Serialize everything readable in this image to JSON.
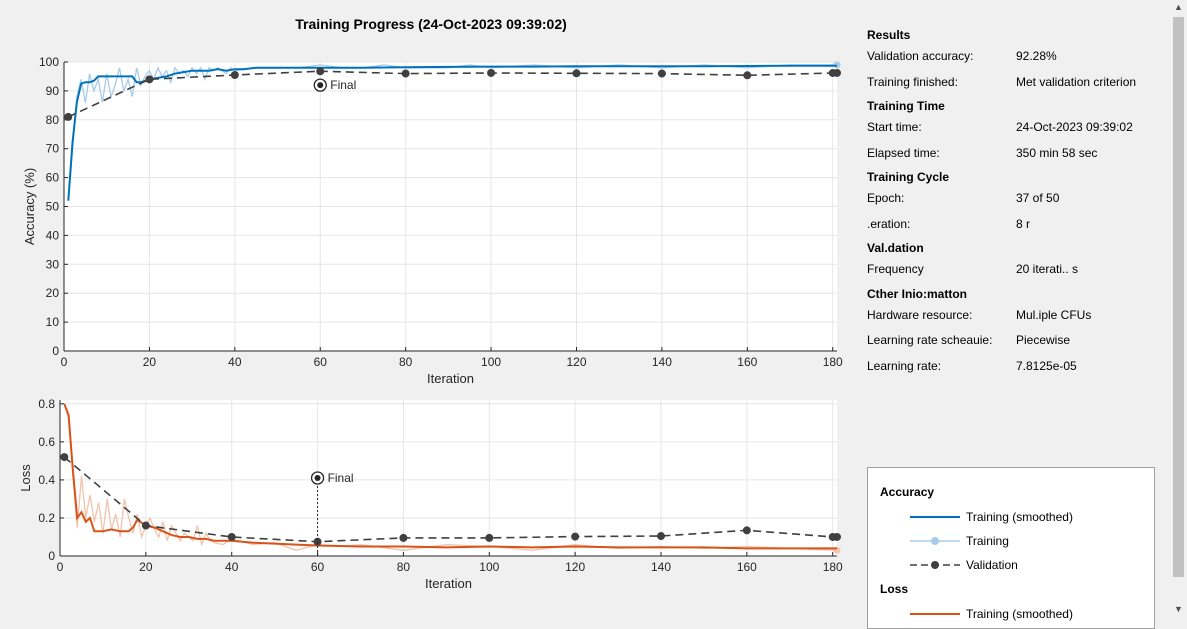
{
  "title": "Training Progress (24-Oct-2023 09:39:02)",
  "colors": {
    "acc_smooth": "#0072bd",
    "acc_train": "#a8cbe8",
    "loss_smooth": "#d95319",
    "loss_train": "#f0c4ad",
    "validation": "#404040"
  },
  "chart_data": [
    {
      "type": "line",
      "ylabel": "Accuracy (%)",
      "xlabel": "Iteration",
      "xlim": [
        0,
        181
      ],
      "ylim": [
        0,
        100
      ],
      "xticks": [
        0,
        20,
        40,
        60,
        80,
        100,
        120,
        140,
        160,
        180
      ],
      "yticks": [
        0,
        10,
        20,
        30,
        40,
        50,
        60,
        70,
        80,
        90,
        100
      ],
      "grid": true,
      "final_marker": {
        "x": 60,
        "y": 92,
        "label": "Final"
      },
      "series": [
        {
          "name": "Training (smoothed)",
          "x": [
            1,
            2,
            3,
            4,
            5,
            6,
            7,
            8,
            9,
            10,
            12,
            14,
            16,
            17,
            18,
            20,
            22,
            24,
            26,
            28,
            30,
            32,
            34,
            36,
            38,
            40,
            42,
            45,
            50,
            55,
            60,
            70,
            80,
            90,
            100,
            110,
            120,
            130,
            140,
            150,
            160,
            170,
            181
          ],
          "y": [
            52,
            72,
            86,
            92.5,
            93,
            93,
            93.5,
            95,
            95,
            95,
            95,
            95,
            95,
            93,
            93,
            94,
            94.5,
            95,
            96,
            96.5,
            97,
            97,
            97,
            97.5,
            97,
            97.5,
            97.5,
            98,
            98,
            98,
            98,
            98,
            98.2,
            98.3,
            98.4,
            98.4,
            98.5,
            98.5,
            98.5,
            98.5,
            98.6,
            98.7,
            98.7
          ]
        },
        {
          "name": "Training",
          "x": [
            1,
            2,
            3,
            4,
            5,
            6,
            7,
            8,
            9,
            10,
            11,
            12,
            13,
            14,
            15,
            16,
            17,
            18,
            19,
            20,
            21,
            22,
            23,
            24,
            25,
            26,
            27,
            28,
            29,
            30,
            31,
            32,
            33,
            34,
            35,
            36,
            37,
            38,
            39,
            40,
            45,
            50,
            55,
            60,
            65,
            70,
            75,
            80,
            85,
            90,
            95,
            100,
            110,
            120,
            130,
            140,
            150,
            160,
            170,
            181
          ],
          "y": [
            52,
            70,
            88,
            94,
            86,
            96,
            90,
            94,
            86,
            96,
            88,
            92,
            98,
            90,
            94,
            88,
            98,
            92,
            95,
            97,
            94,
            98,
            95,
            97,
            93,
            98,
            96,
            97,
            95,
            98,
            96,
            98,
            94,
            98,
            97,
            98,
            97,
            96,
            98,
            97,
            98,
            98,
            98,
            99,
            98,
            98,
            99,
            98,
            98,
            98,
            99,
            98,
            99,
            98,
            99,
            98,
            99,
            98,
            99,
            99
          ]
        },
        {
          "name": "Validation",
          "x": [
            1,
            20,
            40,
            60,
            80,
            100,
            120,
            140,
            160,
            180,
            181
          ],
          "y": [
            81,
            94,
            95.5,
            96.8,
            96,
            96.2,
            96.1,
            96,
            95.4,
            96.2,
            96.2
          ]
        }
      ]
    },
    {
      "type": "line",
      "ylabel": "Loss",
      "xlabel": "Iteration",
      "xlim": [
        0,
        181
      ],
      "ylim": [
        0,
        0.82
      ],
      "xticks": [
        0,
        20,
        40,
        60,
        80,
        100,
        120,
        140,
        160,
        180
      ],
      "yticks": [
        0,
        0.2,
        0.4,
        0.6,
        0.8
      ],
      "grid": true,
      "final_marker": {
        "x": 60,
        "y": 0.41,
        "label": "Final"
      },
      "series": [
        {
          "name": "Training (smoothed)",
          "x": [
            1,
            2,
            3,
            4,
            5,
            6,
            7,
            8,
            10,
            12,
            14,
            16,
            17,
            18,
            20,
            22,
            24,
            26,
            28,
            30,
            32,
            34,
            36,
            38,
            40,
            45,
            50,
            55,
            60,
            70,
            80,
            90,
            100,
            110,
            120,
            130,
            140,
            150,
            160,
            170,
            181
          ],
          "y": [
            0.8,
            0.74,
            0.45,
            0.2,
            0.23,
            0.18,
            0.2,
            0.13,
            0.13,
            0.14,
            0.13,
            0.13,
            0.15,
            0.19,
            0.16,
            0.15,
            0.13,
            0.11,
            0.1,
            0.1,
            0.09,
            0.09,
            0.08,
            0.08,
            0.08,
            0.07,
            0.065,
            0.06,
            0.055,
            0.05,
            0.05,
            0.045,
            0.05,
            0.045,
            0.05,
            0.045,
            0.045,
            0.045,
            0.04,
            0.04,
            0.04
          ]
        },
        {
          "name": "Training",
          "x": [
            1,
            2,
            3,
            4,
            5,
            6,
            7,
            8,
            9,
            10,
            11,
            12,
            13,
            14,
            15,
            16,
            17,
            18,
            19,
            20,
            21,
            22,
            23,
            24,
            25,
            26,
            27,
            28,
            29,
            30,
            31,
            32,
            33,
            34,
            35,
            36,
            38,
            40,
            45,
            50,
            55,
            60,
            65,
            70,
            80,
            90,
            100,
            110,
            120,
            130,
            140,
            150,
            160,
            170,
            181
          ],
          "y": [
            0.8,
            0.72,
            0.42,
            0.15,
            0.42,
            0.2,
            0.32,
            0.18,
            0.28,
            0.12,
            0.3,
            0.14,
            0.22,
            0.1,
            0.3,
            0.2,
            0.12,
            0.22,
            0.1,
            0.16,
            0.2,
            0.14,
            0.1,
            0.18,
            0.08,
            0.16,
            0.12,
            0.08,
            0.12,
            0.1,
            0.08,
            0.16,
            0.06,
            0.12,
            0.08,
            0.07,
            0.06,
            0.09,
            0.06,
            0.07,
            0.03,
            0.06,
            0.05,
            0.06,
            0.03,
            0.06,
            0.05,
            0.03,
            0.06,
            0.04,
            0.05,
            0.04,
            0.05,
            0.04,
            0.03
          ]
        },
        {
          "name": "Validation",
          "x": [
            1,
            20,
            40,
            60,
            80,
            100,
            120,
            140,
            160,
            180,
            181
          ],
          "y": [
            0.52,
            0.16,
            0.1,
            0.075,
            0.095,
            0.095,
            0.102,
            0.105,
            0.135,
            0.1,
            0.1
          ]
        }
      ]
    }
  ],
  "info": {
    "results_head": "Results",
    "val_acc_label": "Validation accuracy:",
    "val_acc_value": "92.28%",
    "finished_label": "Training finished:",
    "finished_value": "Met validation criterion",
    "time_head": "Training Time",
    "start_label": "Start time:",
    "start_value": "24-Oct-2023 09:39:02",
    "elapsed_label": "Elapsed time:",
    "elapsed_value": "350 min 58 sec",
    "cycle_head": "Training Cycle",
    "epoch_label": "Epoch:",
    "epoch_value": "37 of 50",
    "iter_label": ".eration:",
    "iter_value": "8 r",
    "validation_head": "Val.dation",
    "freq_label": "Frequency",
    "freq_value": "20 iterati.. s",
    "other_head": "Cther Inio:matton",
    "hw_label": "Hardware resource:",
    "hw_value": "Mul.iple CFUs",
    "lrs_label": "Learning rate scheauie:",
    "lrs_value": "Piecewise",
    "lr_label": "Learning rate:",
    "lr_value": "7.8125e-05"
  },
  "legend": {
    "acc_head": "Accuracy",
    "acc_smooth": "Training (smoothed)",
    "acc_train": "Training",
    "acc_val": "Validation",
    "loss_head": "Loss",
    "loss_smooth": "Training (smoothed)"
  }
}
